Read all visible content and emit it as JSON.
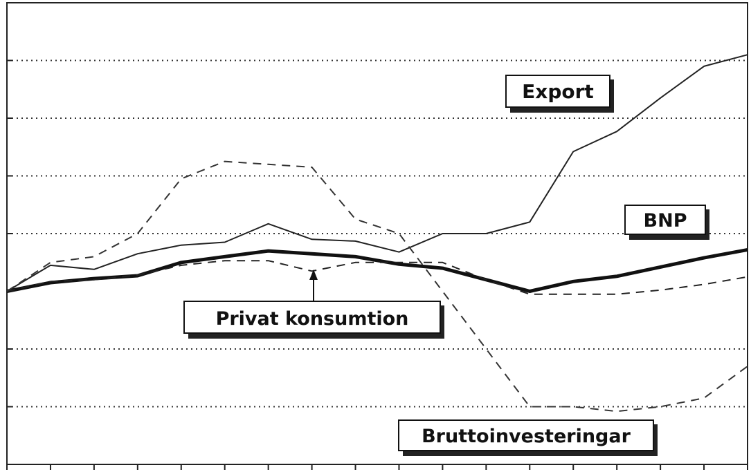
{
  "chart_data": {
    "type": "line",
    "title": "",
    "xlabel": "",
    "ylabel": "",
    "x": [
      0,
      1,
      2,
      3,
      4,
      5,
      6,
      7,
      8,
      9,
      10,
      11,
      12,
      13,
      14,
      15,
      16,
      17
    ],
    "ylim": [
      -3,
      5
    ],
    "gridlines_y": [
      -2,
      -1,
      1,
      2,
      3,
      4
    ],
    "grid": "horizontal dotted",
    "series": [
      {
        "name": "Export",
        "style": "solid-thin",
        "color": "#222222",
        "values": [
          0,
          0.45,
          0.38,
          0.65,
          0.8,
          0.85,
          1.17,
          0.9,
          0.87,
          0.68,
          1.0,
          1.0,
          1.2,
          2.42,
          2.77,
          3.35,
          3.9,
          4.1
        ]
      },
      {
        "name": "BNP",
        "style": "solid-thick",
        "color": "#111111",
        "values": [
          0,
          0.15,
          0.22,
          0.27,
          0.5,
          0.6,
          0.7,
          0.65,
          0.6,
          0.47,
          0.4,
          0.2,
          0.0,
          0.17,
          0.26,
          0.42,
          0.58,
          0.72
        ]
      },
      {
        "name": "Privat konsumtion",
        "style": "dashed",
        "color": "#222222",
        "values": [
          0,
          0.17,
          0.2,
          0.28,
          0.45,
          0.53,
          0.53,
          0.35,
          0.5,
          0.5,
          0.5,
          0.2,
          -0.05,
          -0.05,
          -0.05,
          0.02,
          0.12,
          0.25
        ]
      },
      {
        "name": "Bruttoinvesteringar",
        "style": "dashed",
        "color": "#333333",
        "values": [
          0,
          0.5,
          0.6,
          1.0,
          1.95,
          2.25,
          2.2,
          2.15,
          1.25,
          1.0,
          0.0,
          -1.0,
          -2.0,
          -2.0,
          -2.08,
          -2.0,
          -1.85,
          -1.3
        ]
      }
    ],
    "labels": {
      "export": "Export",
      "bnp": "BNP",
      "privat": "Privat konsumtion",
      "brutto": "Bruttoinvesteringar"
    }
  }
}
